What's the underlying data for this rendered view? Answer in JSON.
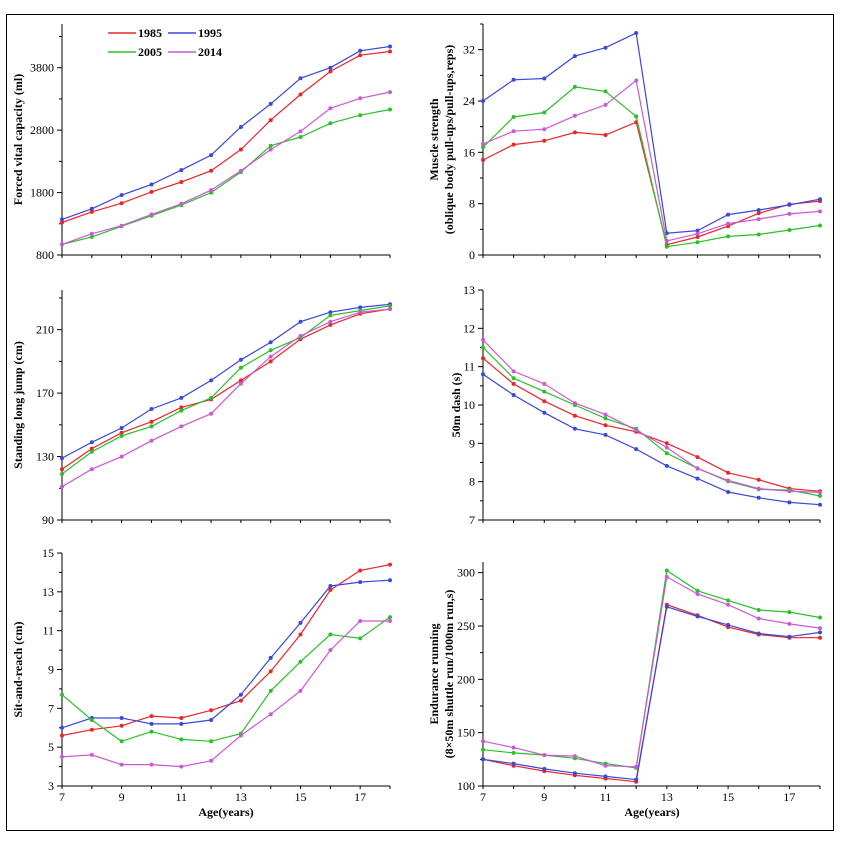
{
  "colors": {
    "1985": "#e8262b",
    "1995": "#3a49d6",
    "2005": "#2bbf2b",
    "2014": "#c95ad6"
  },
  "legend": [
    {
      "year": "1985",
      "label": "1985"
    },
    {
      "year": "1995",
      "label": "1995"
    },
    {
      "year": "2005",
      "label": "2005"
    },
    {
      "year": "2014",
      "label": "2014"
    }
  ],
  "chart_data": [
    {
      "id": "fvc",
      "type": "line",
      "xlabel": "",
      "ylabel": "Forced vital capacity (ml)",
      "x": [
        7,
        8,
        9,
        10,
        11,
        12,
        13,
        14,
        15,
        16,
        17,
        18
      ],
      "xticks": [],
      "xlim": [
        7,
        18
      ],
      "yticks": [
        800,
        1800,
        2800,
        3800
      ],
      "ylim": [
        800,
        4500
      ],
      "series": [
        {
          "name": "1985",
          "values": [
            1320,
            1490,
            1630,
            1810,
            1970,
            2150,
            2490,
            2960,
            3370,
            3740,
            4000,
            4060
          ]
        },
        {
          "name": "1995",
          "values": [
            1370,
            1540,
            1760,
            1930,
            2160,
            2400,
            2850,
            3220,
            3630,
            3800,
            4070,
            4140
          ]
        },
        {
          "name": "2005",
          "values": [
            970,
            1090,
            1260,
            1430,
            1600,
            1800,
            2130,
            2550,
            2690,
            2910,
            3040,
            3130
          ]
        },
        {
          "name": "2014",
          "values": [
            970,
            1140,
            1270,
            1450,
            1620,
            1840,
            2150,
            2490,
            2780,
            3150,
            3310,
            3410
          ]
        }
      ]
    },
    {
      "id": "strength",
      "type": "line",
      "xlabel": "",
      "ylabel": "Muscle strength",
      "ylabel2": "(oblique body pull-ups/pull-ups,reps)",
      "x": [
        7,
        8,
        9,
        10,
        11,
        12,
        13,
        14,
        15,
        16,
        17,
        18
      ],
      "xticks": [],
      "xlim": [
        7,
        18
      ],
      "yticks": [
        0,
        8,
        16,
        24,
        32
      ],
      "ylim": [
        0,
        36
      ],
      "series": [
        {
          "name": "1985",
          "values": [
            14.8,
            17.2,
            17.8,
            19.1,
            18.7,
            20.7,
            1.6,
            2.8,
            4.5,
            6.5,
            7.9,
            8.4
          ]
        },
        {
          "name": "1995",
          "values": [
            24.0,
            27.3,
            27.5,
            31.0,
            32.3,
            34.6,
            3.4,
            3.8,
            6.3,
            7.0,
            7.8,
            8.7
          ]
        },
        {
          "name": "2005",
          "values": [
            16.8,
            21.5,
            22.2,
            26.2,
            25.5,
            21.6,
            1.3,
            2.0,
            2.9,
            3.2,
            3.9,
            4.6
          ]
        },
        {
          "name": "2014",
          "values": [
            17.3,
            19.3,
            19.6,
            21.7,
            23.4,
            27.2,
            2.2,
            3.3,
            4.9,
            5.6,
            6.4,
            6.8
          ]
        }
      ]
    },
    {
      "id": "jump",
      "type": "line",
      "xlabel": "",
      "ylabel": "Standing long jump (cm)",
      "x": [
        7,
        8,
        9,
        10,
        11,
        12,
        13,
        14,
        15,
        16,
        17,
        18
      ],
      "xticks": [],
      "xlim": [
        7,
        18
      ],
      "yticks": [
        90,
        130,
        170,
        210
      ],
      "ylim": [
        90,
        235
      ],
      "series": [
        {
          "name": "1985",
          "values": [
            122,
            135,
            145,
            152,
            161,
            166,
            178,
            190,
            204,
            213,
            220,
            223
          ]
        },
        {
          "name": "1995",
          "values": [
            129,
            139,
            148,
            160,
            167,
            178,
            191,
            202,
            215,
            221,
            224,
            226
          ]
        },
        {
          "name": "2005",
          "values": [
            119,
            133,
            143,
            149,
            159,
            167,
            186,
            197,
            205,
            219,
            222,
            225
          ]
        },
        {
          "name": "2014",
          "values": [
            111,
            122,
            130,
            140,
            149,
            157,
            176,
            193,
            206,
            215,
            221,
            223
          ]
        }
      ]
    },
    {
      "id": "dash",
      "type": "line",
      "xlabel": "",
      "ylabel": "50m dash (s)",
      "x": [
        7,
        8,
        9,
        10,
        11,
        12,
        13,
        14,
        15,
        16,
        17,
        18
      ],
      "xticks": [],
      "xlim": [
        7,
        18
      ],
      "yticks": [
        7,
        8,
        9,
        10,
        11,
        12,
        13
      ],
      "ylim": [
        7,
        13
      ],
      "series": [
        {
          "name": "1985",
          "values": [
            11.22,
            10.55,
            10.1,
            9.72,
            9.47,
            9.3,
            9.0,
            8.64,
            8.23,
            8.05,
            7.82,
            7.75
          ]
        },
        {
          "name": "1995",
          "values": [
            10.8,
            10.26,
            9.8,
            9.38,
            9.22,
            8.85,
            8.41,
            8.08,
            7.73,
            7.58,
            7.46,
            7.4
          ]
        },
        {
          "name": "2005",
          "values": [
            11.5,
            10.7,
            10.35,
            10.0,
            9.65,
            9.38,
            8.74,
            8.35,
            8.01,
            7.8,
            7.78,
            7.63
          ]
        },
        {
          "name": "2014",
          "values": [
            11.7,
            10.88,
            10.55,
            10.05,
            9.75,
            9.34,
            8.89,
            8.34,
            8.03,
            7.82,
            7.75,
            7.72
          ]
        }
      ]
    },
    {
      "id": "reach",
      "type": "line",
      "xlabel": "Age(years)",
      "ylabel": "Sit-and-reach (cm)",
      "x": [
        7,
        8,
        9,
        10,
        11,
        12,
        13,
        14,
        15,
        16,
        17,
        18
      ],
      "xticks": [
        7,
        9,
        11,
        13,
        15,
        17
      ],
      "xlim": [
        7,
        18
      ],
      "yticks": [
        3,
        5,
        7,
        9,
        11,
        13,
        15
      ],
      "ylim": [
        3,
        15
      ],
      "series": [
        {
          "name": "1985",
          "values": [
            5.6,
            5.9,
            6.1,
            6.6,
            6.5,
            6.9,
            7.4,
            8.9,
            10.8,
            13.1,
            14.1,
            14.4
          ]
        },
        {
          "name": "1995",
          "values": [
            6.0,
            6.5,
            6.5,
            6.2,
            6.2,
            6.4,
            7.7,
            9.6,
            11.4,
            13.3,
            13.5,
            13.6
          ]
        },
        {
          "name": "2005",
          "values": [
            7.7,
            6.4,
            5.3,
            5.8,
            5.4,
            5.3,
            5.7,
            7.9,
            9.4,
            10.8,
            10.6,
            11.7
          ]
        },
        {
          "name": "2014",
          "values": [
            4.5,
            4.6,
            4.1,
            4.1,
            4.0,
            4.3,
            5.6,
            6.7,
            7.9,
            10.0,
            11.5,
            11.5
          ]
        }
      ]
    },
    {
      "id": "endurance",
      "type": "line",
      "xlabel": "Age(years)",
      "ylabel": "Endurance running",
      "ylabel2": "(8×50m shuttle run/1000m run,s)",
      "x": [
        7,
        8,
        9,
        10,
        11,
        12,
        13,
        14,
        15,
        16,
        17,
        18
      ],
      "xticks": [
        7,
        9,
        11,
        13,
        15,
        17
      ],
      "xlim": [
        7,
        18
      ],
      "yticks": [
        100,
        150,
        200,
        250,
        300
      ],
      "ylim": [
        100,
        310
      ],
      "series": [
        {
          "name": "1985",
          "values": [
            125,
            119,
            114,
            110,
            107,
            104,
            270,
            260,
            249,
            242,
            239,
            239
          ]
        },
        {
          "name": "1995",
          "values": [
            125,
            121,
            116,
            112,
            109,
            106,
            268,
            259,
            251,
            243,
            240,
            244
          ]
        },
        {
          "name": "2005",
          "values": [
            134,
            131,
            129,
            126,
            121,
            117,
            302,
            283,
            274,
            265,
            263,
            258
          ]
        },
        {
          "name": "2014",
          "values": [
            142,
            136,
            129,
            128,
            119,
            118,
            296,
            280,
            270,
            257,
            252,
            248
          ]
        }
      ]
    }
  ]
}
